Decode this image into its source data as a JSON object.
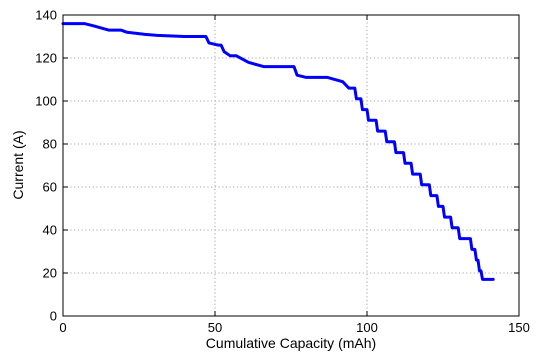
{
  "chart_data": {
    "type": "line",
    "title": "",
    "xlabel": "Cumulative Capacity (mAh)",
    "ylabel": "Current (A)",
    "xlim": [
      0,
      150
    ],
    "ylim": [
      0,
      140
    ],
    "xticks": [
      0,
      50,
      100,
      150
    ],
    "yticks": [
      0,
      20,
      40,
      60,
      80,
      100,
      120,
      140
    ],
    "grid": true,
    "series": [
      {
        "color": "#0000ff",
        "x": [
          0,
          7,
          10,
          15,
          19,
          21,
          27,
          31,
          40,
          47,
          48,
          51,
          52,
          53,
          55,
          57,
          61,
          66,
          76,
          77,
          80,
          86,
          87,
          92,
          94,
          96,
          96.5,
          98,
          98.5,
          100,
          100.5,
          103,
          103.5,
          106,
          106.5,
          109,
          109.5,
          112,
          112.5,
          114.5,
          115,
          117.5,
          118,
          120.5,
          121,
          123,
          123.5,
          125,
          125.5,
          127.5,
          128,
          130,
          130.5,
          134,
          134.5,
          135.5,
          136,
          136.5,
          137,
          137.5,
          138,
          138.5,
          139,
          139.5,
          140,
          140.5,
          141,
          141.5
        ],
        "y": [
          136,
          136,
          135,
          133,
          133,
          132,
          131,
          130.5,
          130,
          130,
          127,
          126,
          126,
          123,
          121,
          121,
          118,
          116,
          116,
          112,
          111,
          111,
          111,
          109,
          106,
          106,
          101,
          101,
          96,
          96,
          91,
          91,
          86,
          86,
          81,
          81,
          76,
          76,
          71,
          71,
          66,
          66,
          61,
          61,
          56,
          56,
          51,
          51,
          46,
          46,
          41,
          41,
          36,
          36,
          31,
          31,
          26,
          26,
          21,
          21,
          17,
          17,
          17,
          17,
          17,
          17,
          17,
          17
        ]
      }
    ]
  }
}
